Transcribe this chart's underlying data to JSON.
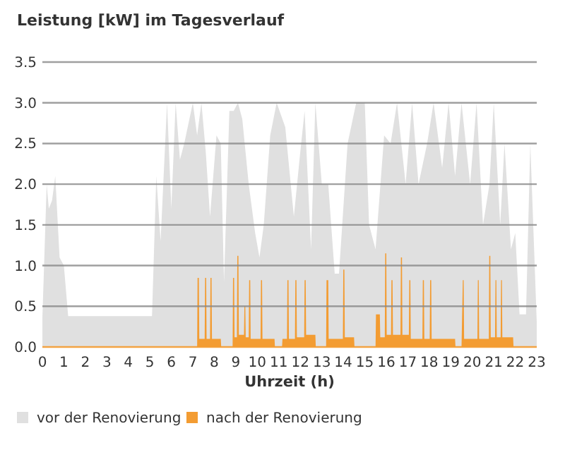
{
  "chart_data": {
    "type": "area",
    "title": "Leistung [kW] im Tagesverlauf",
    "xlabel": "Uhrzeit (h)",
    "xlim": [
      0,
      23
    ],
    "xticks": [
      0,
      1,
      2,
      3,
      4,
      5,
      6,
      7,
      8,
      9,
      10,
      11,
      12,
      13,
      14,
      15,
      16,
      17,
      18,
      19,
      20,
      21,
      22,
      23
    ],
    "ylim": [
      0,
      3.5
    ],
    "yticks": [
      {
        "value": 0,
        "label": "0.0"
      },
      {
        "value": 0.5,
        "label": "0.5"
      },
      {
        "value": 1,
        "label": "1.0"
      },
      {
        "value": 1.5,
        "label": "1.5"
      },
      {
        "value": 2,
        "label": "2.0"
      },
      {
        "value": 2.5,
        "label": "2.5"
      },
      {
        "value": 3,
        "label": "3.0"
      },
      {
        "value": 3.5,
        "label": "3.5"
      }
    ],
    "grid": "y",
    "legend": "bottom left",
    "series": [
      {
        "name": "vor der Renovierung",
        "color": "#e0e0e0",
        "x": [
          0,
          0.2,
          0.3,
          0.45,
          0.6,
          0.8,
          1.0,
          1.2,
          5.1,
          5.3,
          5.5,
          5.8,
          6.0,
          6.2,
          6.4,
          6.6,
          7.0,
          7.2,
          7.4,
          7.6,
          7.8,
          8.1,
          8.3,
          8.45,
          8.7,
          8.9,
          9.1,
          9.3,
          9.6,
          9.9,
          10.1,
          10.3,
          10.6,
          10.9,
          11.3,
          11.7,
          12.0,
          12.2,
          12.5,
          12.7,
          13.0,
          13.3,
          13.6,
          13.8,
          14.2,
          14.6,
          15.0,
          15.2,
          15.5,
          15.9,
          16.2,
          16.5,
          16.9,
          17.2,
          17.5,
          17.9,
          18.2,
          18.6,
          18.9,
          19.2,
          19.5,
          19.9,
          20.2,
          20.5,
          20.8,
          21.0,
          21.3,
          21.5,
          21.8,
          22.0,
          22.2,
          22.5,
          22.7,
          23
        ],
        "values": [
          0.35,
          2.0,
          1.7,
          1.8,
          2.1,
          1.1,
          1.0,
          0.38,
          0.38,
          2.1,
          1.3,
          3.0,
          1.7,
          3.0,
          2.3,
          2.5,
          3.0,
          2.6,
          3.0,
          2.4,
          1.6,
          2.6,
          2.5,
          0.8,
          2.9,
          2.9,
          3.0,
          2.8,
          2.0,
          1.4,
          1.1,
          1.5,
          2.6,
          3.0,
          2.7,
          1.6,
          2.4,
          2.9,
          1.2,
          3.0,
          2.0,
          2.0,
          0.9,
          0.9,
          2.5,
          3.0,
          3.0,
          1.5,
          1.2,
          2.6,
          2.5,
          3.0,
          2.0,
          3.0,
          2.0,
          2.5,
          3.0,
          2.2,
          3.0,
          2.1,
          3.0,
          2.0,
          3.0,
          1.5,
          2.0,
          3.0,
          1.5,
          2.5,
          1.2,
          1.4,
          0.4,
          0.4,
          2.5,
          0.3
        ]
      },
      {
        "name": "nach der Renovierung",
        "color": "#f39c32",
        "x": [
          0,
          7.2,
          7.22,
          7.28,
          7.3,
          7.55,
          7.57,
          7.62,
          7.64,
          7.8,
          7.82,
          7.87,
          7.89,
          8.3,
          8.32,
          8.85,
          8.87,
          8.92,
          8.94,
          9.05,
          9.07,
          9.12,
          9.14,
          9.38,
          9.4,
          9.44,
          9.46,
          9.6,
          9.62,
          9.67,
          9.69,
          10.15,
          10.17,
          10.22,
          10.24,
          10.8,
          10.82,
          11.15,
          11.17,
          11.38,
          11.4,
          11.45,
          11.47,
          11.75,
          11.77,
          11.82,
          11.84,
          12.18,
          12.2,
          12.25,
          12.27,
          12.7,
          12.72,
          13.2,
          13.22,
          13.3,
          13.32,
          13.98,
          14.0,
          14.05,
          14.07,
          14.5,
          14.52,
          15.5,
          15.52,
          15.7,
          15.72,
          15.93,
          15.95,
          16.0,
          16.02,
          16.22,
          16.24,
          16.29,
          16.31,
          16.66,
          16.68,
          16.73,
          16.75,
          17.05,
          17.07,
          17.12,
          17.14,
          17.68,
          17.7,
          17.75,
          17.77,
          18.02,
          18.04,
          18.09,
          18.11,
          19.2,
          19.22,
          19.5,
          19.56,
          19.6,
          19.62,
          20.24,
          20.26,
          20.3,
          20.32,
          20.77,
          20.79,
          20.84,
          20.86,
          21.06,
          21.08,
          21.12,
          21.14,
          21.32,
          21.34,
          21.38,
          21.4,
          21.9,
          21.92,
          23
        ],
        "values": [
          0,
          0,
          0.85,
          0.85,
          0.1,
          0.1,
          0.85,
          0.85,
          0.1,
          0.1,
          0.85,
          0.85,
          0.1,
          0.1,
          0,
          0,
          0.85,
          0.85,
          0.12,
          0.12,
          1.12,
          1.12,
          0.15,
          0.15,
          0.5,
          0.5,
          0.12,
          0.12,
          0.82,
          0.82,
          0.1,
          0.1,
          0.82,
          0.82,
          0.1,
          0.1,
          0,
          0,
          0.1,
          0.1,
          0.82,
          0.82,
          0.1,
          0.1,
          0.82,
          0.82,
          0.12,
          0.12,
          0.82,
          0.82,
          0.15,
          0.15,
          0,
          0,
          0.82,
          0.82,
          0.1,
          0.1,
          0.95,
          0.95,
          0.12,
          0.12,
          0,
          0,
          0.4,
          0.4,
          0.12,
          0.12,
          1.15,
          1.15,
          0.15,
          0.15,
          0.82,
          0.82,
          0.15,
          0.15,
          1.1,
          1.1,
          0.15,
          0.15,
          0.82,
          0.82,
          0.1,
          0.1,
          0.82,
          0.82,
          0.1,
          0.1,
          0.82,
          0.82,
          0.1,
          0.1,
          0,
          0,
          0.82,
          0.82,
          0.1,
          0.1,
          0.82,
          0.82,
          0.1,
          0.1,
          1.12,
          1.12,
          0.12,
          0.12,
          0.82,
          0.82,
          0.12,
          0.12,
          0.82,
          0.82,
          0.12,
          0.12,
          0,
          0
        ]
      }
    ]
  }
}
